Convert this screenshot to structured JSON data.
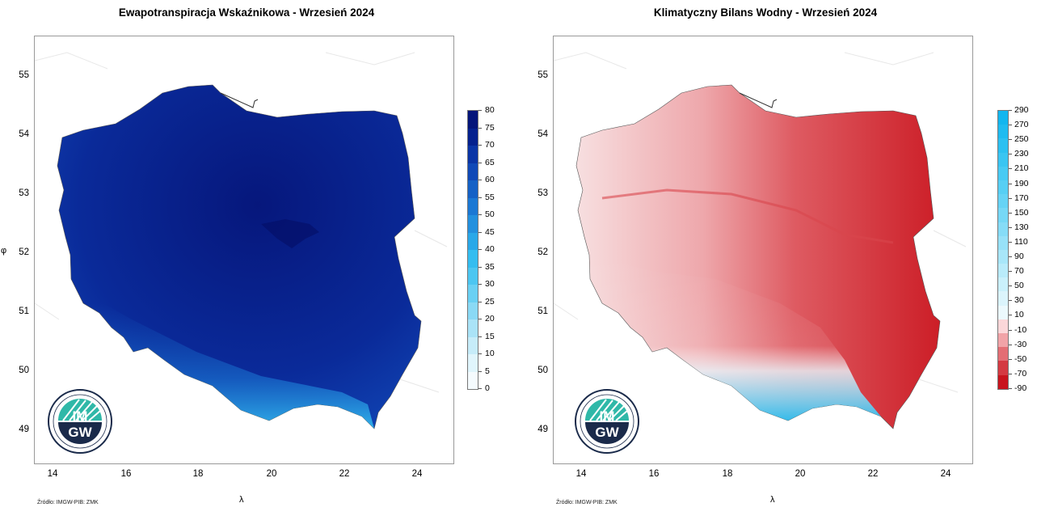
{
  "panels": [
    {
      "id": "et",
      "title": "Ewapotranspiracja Wskaźnikowa - Wrzesień 2024",
      "xlabel": "λ",
      "ylabel": "φ",
      "source": "Źródło: IMGW-PIB: ZMK",
      "x_ticks": [
        "14",
        "16",
        "18",
        "20",
        "22",
        "24"
      ],
      "y_ticks": [
        "55",
        "54",
        "53",
        "52",
        "51",
        "50",
        "49"
      ],
      "legend_labels": [
        "80",
        "75",
        "70",
        "65",
        "60",
        "55",
        "50",
        "45",
        "40",
        "35",
        "30",
        "25",
        "20",
        "15",
        "10",
        "5",
        "0"
      ],
      "legend_colors": [
        "#04157a",
        "#05218e",
        "#0a35a6",
        "#1049b7",
        "#1561c6",
        "#1b78d4",
        "#2390de",
        "#2aa8e8",
        "#34bdf0",
        "#4cc6f1",
        "#6ad0f3",
        "#8ad9f5",
        "#aae3f7",
        "#c6ecf9",
        "#e0f5fc",
        "#f5fbfe"
      ],
      "logo_text": [
        "IM",
        "GW"
      ]
    },
    {
      "id": "kbw",
      "title": "Klimatyczny Bilans Wodny - Wrzesień 2024",
      "xlabel": "λ",
      "ylabel": "",
      "source": "Źródło: IMGW-PIB: ZMK",
      "x_ticks": [
        "14",
        "16",
        "18",
        "20",
        "22",
        "24"
      ],
      "y_ticks": [
        "55",
        "54",
        "53",
        "52",
        "51",
        "50",
        "49"
      ],
      "legend_labels": [
        "290",
        "270",
        "250",
        "230",
        "210",
        "190",
        "170",
        "150",
        "130",
        "110",
        "90",
        "70",
        "50",
        "30",
        "10",
        "-10",
        "-30",
        "-50",
        "-70",
        "-90"
      ],
      "legend_colors": [
        "#12b6ef",
        "#1fbbf0",
        "#2cc0f1",
        "#3ac5f2",
        "#48caf3",
        "#57cff4",
        "#66d3f5",
        "#76d8f6",
        "#86dcf7",
        "#97e1f8",
        "#a8e6f9",
        "#b9ebfa",
        "#caf0fb",
        "#dbf4fc",
        "#ecf9fd",
        "#fbd7d9",
        "#f1a3a7",
        "#e36e74",
        "#d43a42",
        "#c8141d"
      ],
      "logo_text": [
        "IM",
        "GW"
      ]
    }
  ]
}
